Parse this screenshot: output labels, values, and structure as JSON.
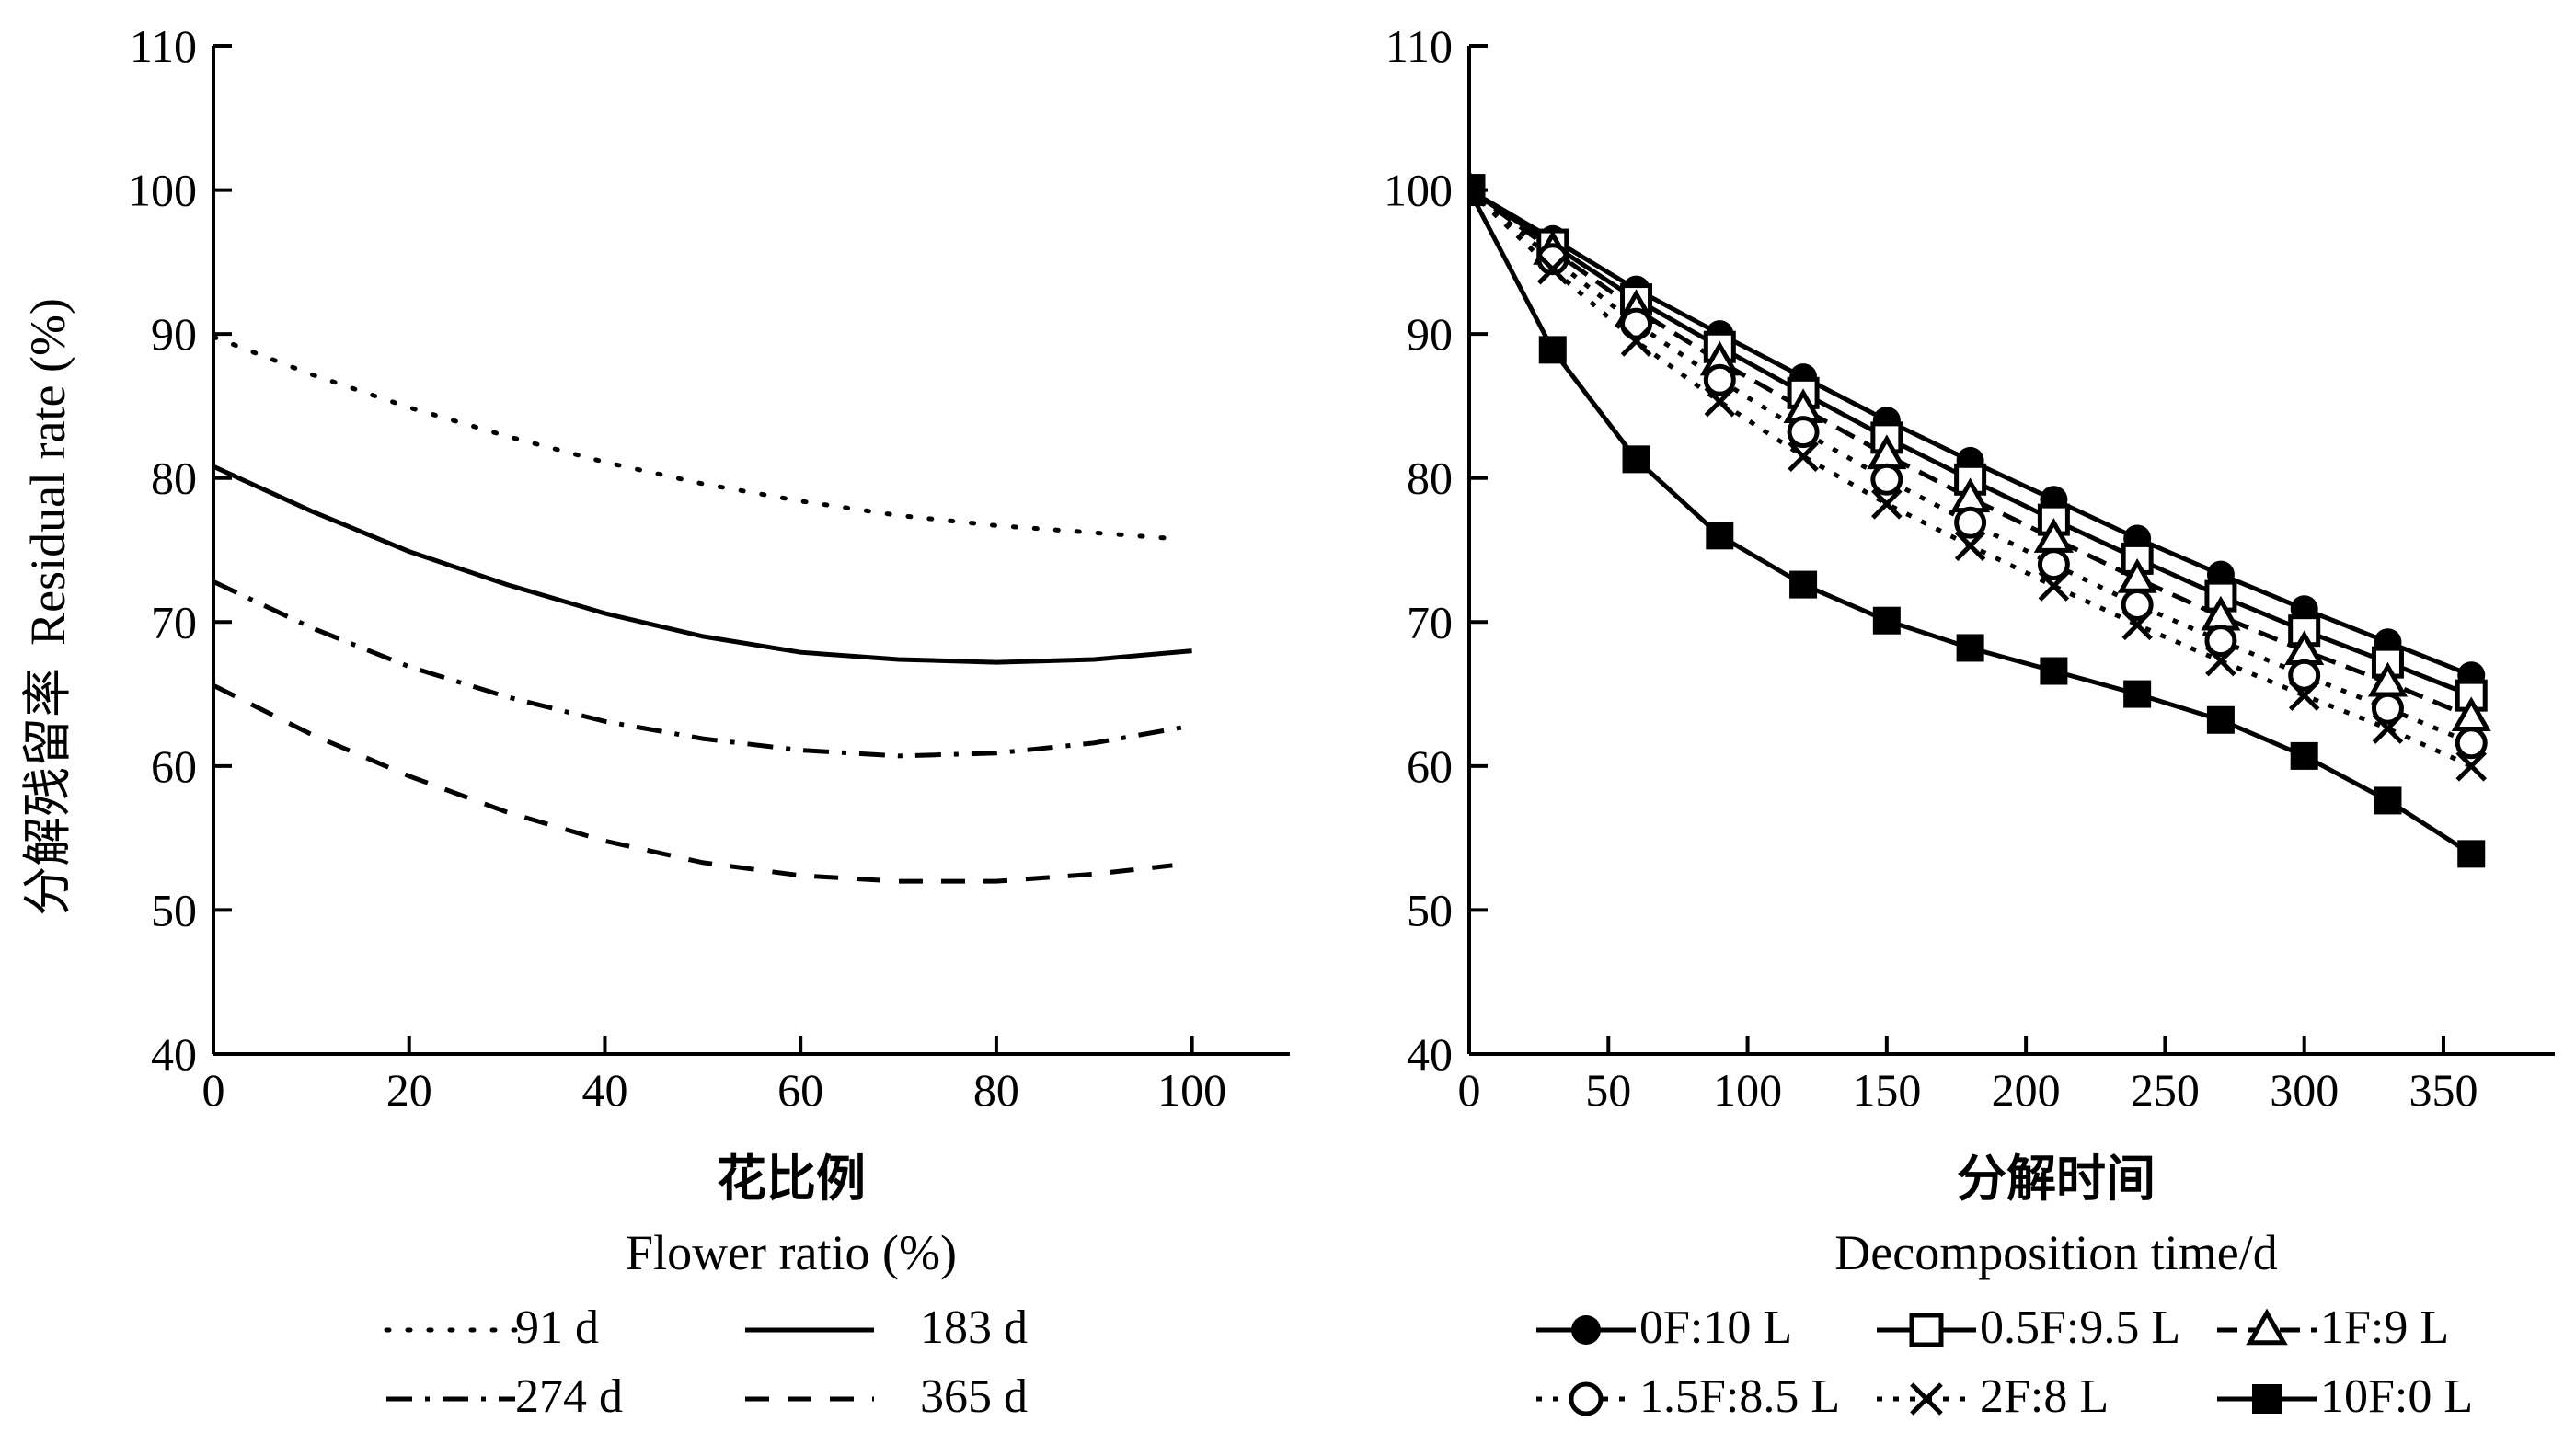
{
  "chart_data": [
    {
      "type": "line",
      "title": "",
      "xlabel_cn": "花比例",
      "xlabel_en": "Flower ratio (%)",
      "ylabel_cn": "分解残留率",
      "ylabel_en": "Residual rate (%)",
      "xlim": [
        0,
        110
      ],
      "ylim": [
        40,
        110
      ],
      "xticks": [
        0,
        20,
        40,
        60,
        80,
        100
      ],
      "yticks": [
        40,
        50,
        60,
        70,
        80,
        90,
        100,
        110
      ],
      "grid": false,
      "legend_position": "bottom",
      "series": [
        {
          "name": "91 d",
          "style": "dotted",
          "x": [
            0,
            10,
            20,
            30,
            40,
            50,
            60,
            70,
            80,
            90,
            98
          ],
          "y": [
            89.8,
            87.2,
            84.9,
            82.9,
            81.1,
            79.6,
            78.4,
            77.4,
            76.7,
            76.2,
            75.8
          ]
        },
        {
          "name": "183 d",
          "style": "solid",
          "x": [
            0,
            10,
            20,
            30,
            40,
            50,
            60,
            70,
            80,
            90,
            100
          ],
          "y": [
            80.8,
            77.7,
            74.9,
            72.6,
            70.6,
            69.0,
            67.9,
            67.4,
            67.2,
            67.4,
            68.0
          ]
        },
        {
          "name": "274 d",
          "style": "dashdot",
          "x": [
            0,
            10,
            20,
            30,
            40,
            50,
            60,
            70,
            80,
            90,
            100
          ],
          "y": [
            72.8,
            69.6,
            66.9,
            64.8,
            63.1,
            61.9,
            61.1,
            60.7,
            60.9,
            61.6,
            62.8
          ]
        },
        {
          "name": "365 d",
          "style": "dashed",
          "x": [
            0,
            10,
            20,
            30,
            40,
            50,
            60,
            70,
            80,
            90,
            98
          ],
          "y": [
            65.6,
            62.2,
            59.3,
            56.8,
            54.8,
            53.3,
            52.4,
            52.0,
            52.0,
            52.5,
            53.1
          ]
        }
      ]
    },
    {
      "type": "line",
      "title": "",
      "xlabel_cn": "分解时间",
      "xlabel_en": "Decomposition time/d",
      "ylabel": "",
      "xlim": [
        0,
        390
      ],
      "ylim": [
        40,
        110
      ],
      "xticks": [
        0,
        50,
        100,
        150,
        200,
        250,
        300,
        350
      ],
      "yticks": [
        40,
        50,
        60,
        70,
        80,
        90,
        100,
        110
      ],
      "grid": false,
      "legend_position": "bottom",
      "x": [
        0,
        30,
        60,
        90,
        120,
        150,
        180,
        210,
        240,
        270,
        300,
        330,
        360
      ],
      "series": [
        {
          "name": "0F:10 L",
          "marker": "filled-circle",
          "dash": "solid",
          "values": [
            100,
            96.6,
            93.1,
            90.0,
            87.0,
            84.0,
            81.2,
            78.5,
            75.8,
            73.3,
            70.9,
            68.6,
            66.3
          ]
        },
        {
          "name": "0.5F:9.5 L",
          "marker": "open-square",
          "dash": "solid",
          "values": [
            100,
            96.2,
            92.4,
            89.1,
            85.9,
            82.8,
            79.9,
            77.1,
            74.4,
            71.8,
            69.4,
            67.2,
            64.9
          ]
        },
        {
          "name": "1F:9 L",
          "marker": "open-triangle",
          "dash": "dashed",
          "values": [
            100,
            95.8,
            91.7,
            88.1,
            84.8,
            81.6,
            78.6,
            75.8,
            73.0,
            70.4,
            68.0,
            65.8,
            63.4
          ]
        },
        {
          "name": "1.5F:8.5 L",
          "marker": "open-circle",
          "dash": "dotted",
          "values": [
            100,
            95.2,
            90.7,
            86.8,
            83.2,
            79.9,
            76.9,
            74.0,
            71.2,
            68.7,
            66.3,
            64.0,
            61.6
          ]
        },
        {
          "name": "2F:8 L",
          "marker": "cross",
          "dash": "dotted",
          "values": [
            100,
            94.5,
            89.5,
            85.3,
            81.5,
            78.2,
            75.3,
            72.5,
            69.8,
            67.3,
            64.9,
            62.6,
            60.0
          ]
        },
        {
          "name": "10F:0 L",
          "marker": "filled-square",
          "dash": "solid",
          "values": [
            100,
            88.9,
            81.3,
            76.0,
            72.6,
            70.1,
            68.2,
            66.6,
            65.0,
            63.2,
            60.7,
            57.6,
            53.9
          ]
        }
      ]
    }
  ]
}
